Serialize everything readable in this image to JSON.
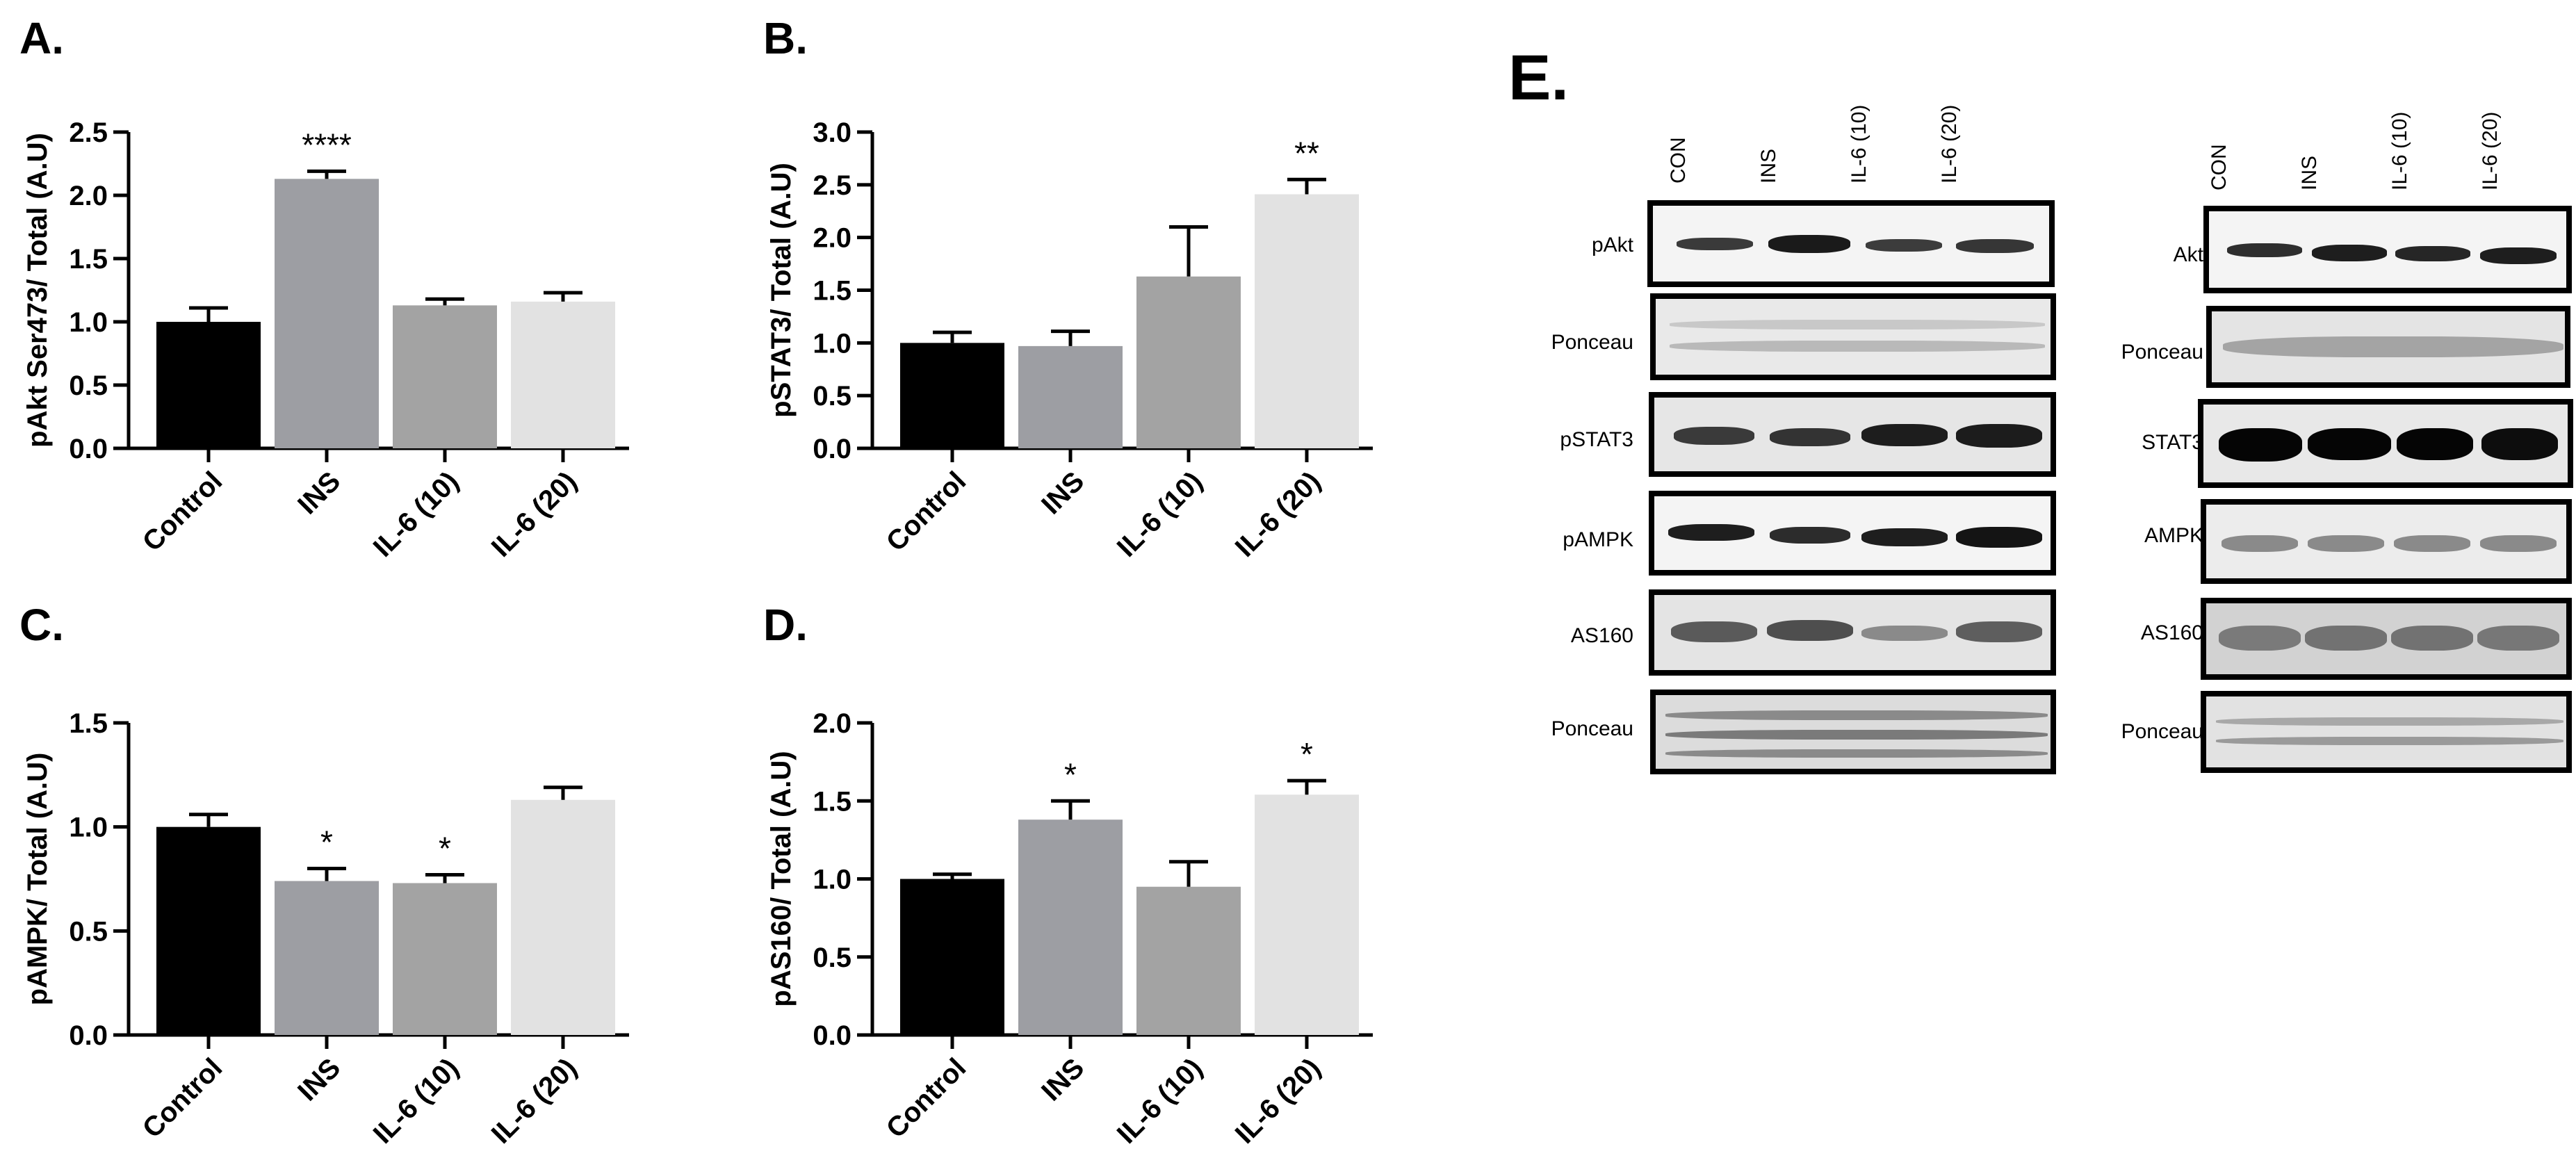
{
  "panels": {
    "a": "A.",
    "b": "B.",
    "c": "C.",
    "d": "D.",
    "e": "E."
  },
  "colors": {
    "control": "#000000",
    "ins": "#9d9ea3",
    "il6_10": "#a3a3a3",
    "il6_20": "#e2e2e2"
  },
  "chart_data": [
    {
      "id": "A",
      "type": "bar",
      "categories": [
        "Control",
        "INS",
        "IL-6 (10)",
        "IL-6 (20)"
      ],
      "values": [
        1.0,
        2.13,
        1.13,
        1.16
      ],
      "errors": [
        0.11,
        0.06,
        0.05,
        0.07
      ],
      "annotations": [
        "",
        "****",
        "",
        ""
      ],
      "ylabel": "pAkt Ser473/ Total (A.U)",
      "ylim": [
        0,
        2.5
      ],
      "yticks": [
        "0.0",
        "0.5",
        "1.0",
        "1.5",
        "2.0",
        "2.5"
      ]
    },
    {
      "id": "B",
      "type": "bar",
      "categories": [
        "Control",
        "INS",
        "IL-6 (10)",
        "IL-6 (20)"
      ],
      "values": [
        1.0,
        0.97,
        1.63,
        2.41
      ],
      "errors": [
        0.1,
        0.14,
        0.47,
        0.14
      ],
      "annotations": [
        "",
        "",
        "",
        "**"
      ],
      "ylabel": "pSTAT3/ Total (A.U)",
      "ylim": [
        0,
        3.0
      ],
      "yticks": [
        "0.0",
        "0.5",
        "1.0",
        "1.5",
        "2.0",
        "2.5",
        "3.0"
      ]
    },
    {
      "id": "C",
      "type": "bar",
      "categories": [
        "Control",
        "INS",
        "IL-6 (10)",
        "IL-6 (20)"
      ],
      "values": [
        1.0,
        0.74,
        0.73,
        1.13
      ],
      "errors": [
        0.06,
        0.06,
        0.04,
        0.06
      ],
      "annotations": [
        "",
        "*",
        "*",
        ""
      ],
      "ylabel": "pAMPK/ Total (A.U)",
      "ylim": [
        0,
        1.5
      ],
      "yticks": [
        "0.0",
        "0.5",
        "1.0",
        "1.5"
      ]
    },
    {
      "id": "D",
      "type": "bar",
      "categories": [
        "Control",
        "INS",
        "IL-6 (10)",
        "IL-6 (20)"
      ],
      "values": [
        1.0,
        1.38,
        0.95,
        1.54
      ],
      "errors": [
        0.03,
        0.12,
        0.16,
        0.09
      ],
      "annotations": [
        "",
        "*",
        "",
        "*"
      ],
      "ylabel": "pAS160/ Total (A.U)",
      "ylim": [
        0,
        2.0
      ],
      "yticks": [
        "0.0",
        "0.5",
        "1.0",
        "1.5",
        "2.0"
      ]
    }
  ],
  "blot": {
    "lanes": [
      "CON",
      "INS",
      "IL-6 (10)",
      "IL-6 (20)"
    ],
    "left_rows": [
      "pAkt",
      "Ponceau",
      "pSTAT3",
      "pAMPK",
      "AS160",
      "Ponceau"
    ],
    "right_rows": [
      "Akt",
      "Ponceau",
      "STAT3",
      "AMPK",
      "AS160",
      "Ponceau"
    ]
  }
}
